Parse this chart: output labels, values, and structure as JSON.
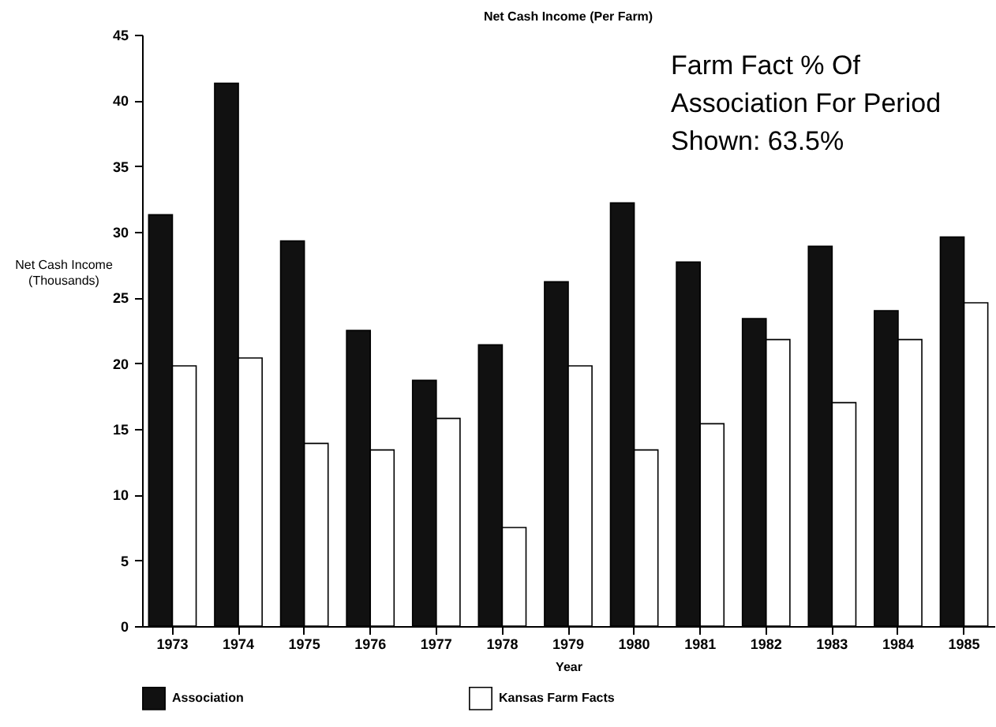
{
  "chart_data": {
    "type": "bar",
    "title": "Net Cash Income (Per Farm)",
    "xlabel": "Year",
    "ylabel": "Net Cash Income\n(Thousands)",
    "categories": [
      "1973",
      "1974",
      "1975",
      "1976",
      "1977",
      "1978",
      "1979",
      "1980",
      "1981",
      "1982",
      "1983",
      "1984",
      "1985"
    ],
    "series": [
      {
        "name": "Association",
        "color": "#111111",
        "values": [
          31.3,
          41.3,
          29.3,
          22.5,
          18.7,
          21.4,
          26.2,
          32.2,
          27.7,
          23.4,
          28.9,
          24.0,
          29.6
        ]
      },
      {
        "name": "Kansas Farm Facts",
        "color": "#ffffff",
        "values": [
          19.8,
          20.4,
          13.9,
          13.4,
          15.8,
          7.5,
          19.8,
          13.4,
          15.4,
          21.8,
          17.0,
          21.8,
          24.6
        ]
      }
    ],
    "ylim": [
      0,
      45
    ],
    "yticks": [
      0,
      5,
      10,
      15,
      20,
      25,
      30,
      35,
      40,
      45
    ],
    "grid": false,
    "legend": "bottom",
    "annotations": [
      "Farm Fact % Of\nAssociation For Period\nShown: 63.5%"
    ]
  }
}
